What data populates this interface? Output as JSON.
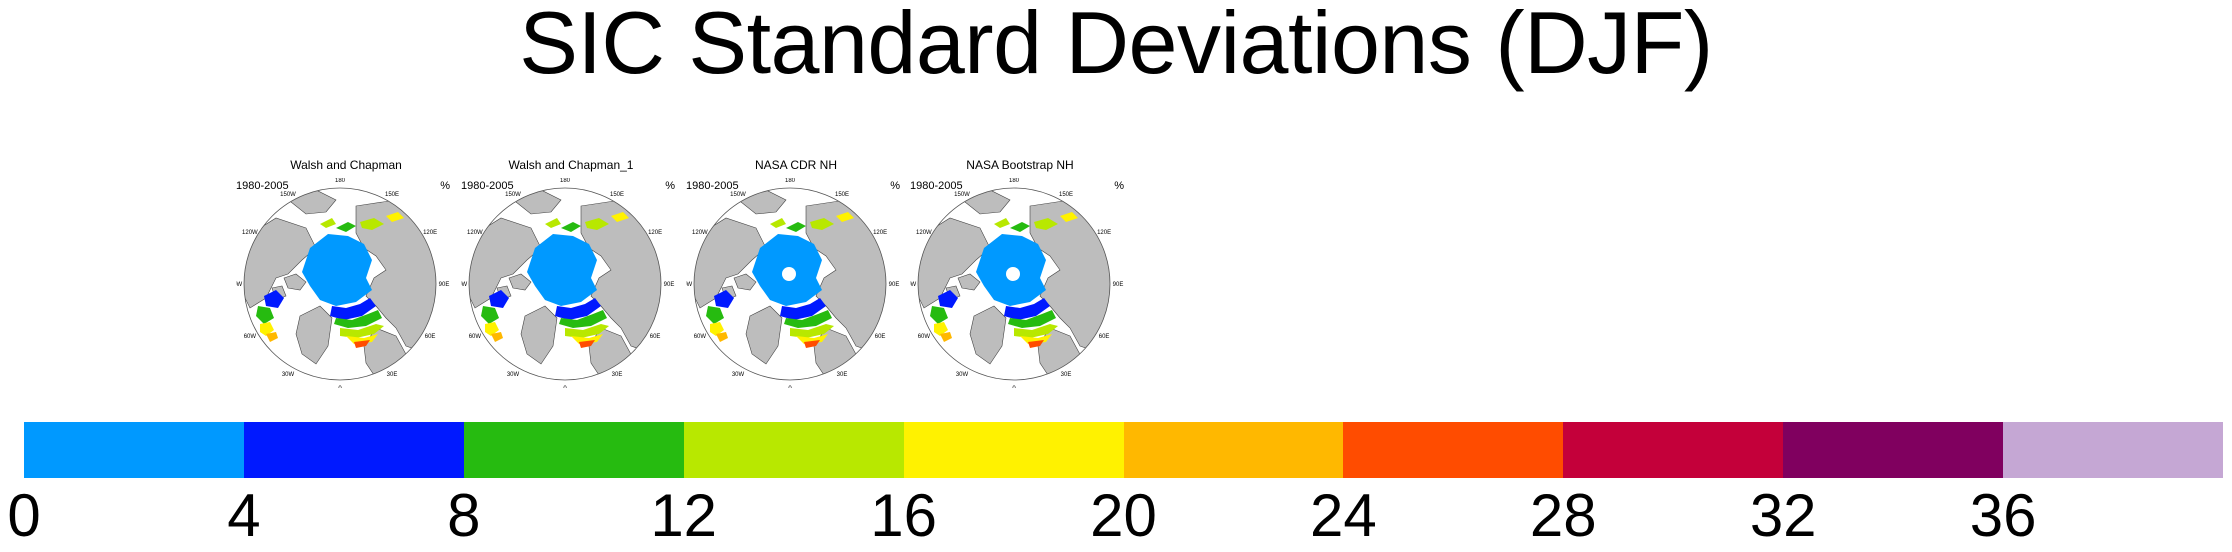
{
  "title": "SIC Standard Deviations (DJF)",
  "panels": [
    {
      "title": "Walsh and Chapman",
      "years": "1980-2005",
      "unit": "%",
      "pole_hole": false
    },
    {
      "title": "Walsh and Chapman_1",
      "years": "1980-2005",
      "unit": "%",
      "pole_hole": false
    },
    {
      "title": "NASA CDR NH",
      "years": "1980-2005",
      "unit": "%",
      "pole_hole": true
    },
    {
      "title": "NASA Bootstrap NH",
      "years": "1980-2005",
      "unit": "%",
      "pole_hole": true
    }
  ],
  "longitude_labels": [
    "180",
    "150E",
    "120E",
    "90E",
    "60E",
    "30E",
    "0",
    "30W",
    "60W",
    "90W",
    "120W",
    "150W"
  ],
  "colorbar": {
    "ticks": [
      "0",
      "4",
      "8",
      "12",
      "16",
      "20",
      "24",
      "28",
      "32",
      "36"
    ],
    "colors": [
      "#0099ff",
      "#0019ff",
      "#26bb10",
      "#b8e800",
      "#fff200",
      "#ffb800",
      "#ff4c00",
      "#c4003a",
      "#80005f",
      "#c5a7d4"
    ]
  }
}
